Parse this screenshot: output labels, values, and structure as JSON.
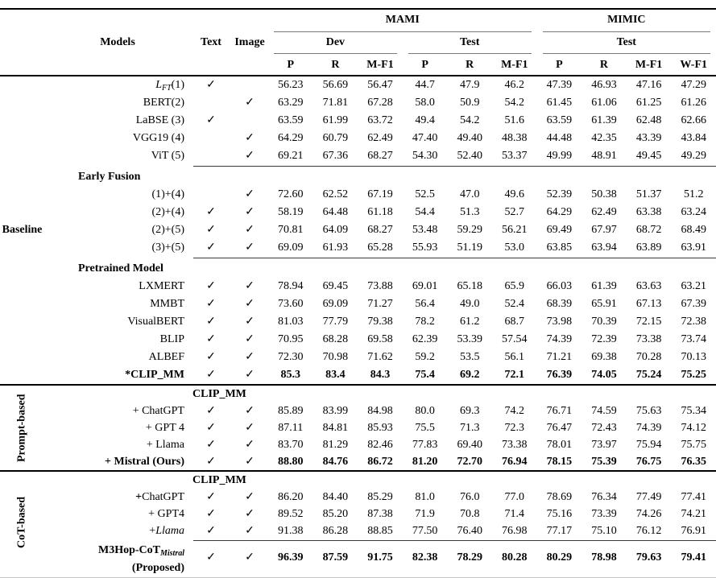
{
  "checkmark": "✓",
  "header": {
    "models": "Models",
    "text": "Text",
    "image": "Image",
    "group_mami": "MAMI",
    "group_mimic": "MIMIC",
    "sub_dev": "Dev",
    "sub_test_mami": "Test",
    "sub_test_mimic": "Test",
    "metrics": [
      "P",
      "R",
      "M-F1",
      "P",
      "R",
      "M-F1",
      "P",
      "R",
      "M-F1",
      "W-F1"
    ]
  },
  "sections": [
    {
      "label": "Baseline",
      "orientation": "horizontal",
      "subsections": [
        {
          "header": null,
          "rows": [
            {
              "label": [
                {
                  "t": "L",
                  "s": "i"
                },
                {
                  "t": "FT",
                  "s": "subi"
                },
                {
                  "t": "(1)",
                  "s": "n"
                }
              ],
              "text": true,
              "image": false,
              "bold": false,
              "values": [
                "56.23",
                "56.69",
                "56.47",
                "44.7",
                "47.9",
                "46.2",
                "47.39",
                "46.93",
                "47.16",
                "47.29"
              ]
            },
            {
              "label": [
                {
                  "t": "BERT(2)",
                  "s": "n"
                }
              ],
              "text": false,
              "image": true,
              "bold": false,
              "values": [
                "63.29",
                "71.81",
                "67.28",
                "58.0",
                "50.9",
                "54.2",
                "61.45",
                "61.06",
                "61.25",
                "61.26"
              ]
            },
            {
              "label": [
                {
                  "t": "LaBSE (3)",
                  "s": "n"
                }
              ],
              "text": true,
              "image": false,
              "bold": false,
              "values": [
                "63.59",
                "61.99",
                "63.72",
                "49.4",
                "54.2",
                "51.6",
                "63.59",
                "61.39",
                "62.48",
                "62.66"
              ]
            },
            {
              "label": [
                {
                  "t": "VGG19 (4)",
                  "s": "n"
                }
              ],
              "text": false,
              "image": true,
              "bold": false,
              "values": [
                "64.29",
                "60.79",
                "62.49",
                "47.40",
                "49.40",
                "48.38",
                "44.48",
                "42.35",
                "43.39",
                "43.84"
              ]
            },
            {
              "label": [
                {
                  "t": "ViT (5)",
                  "s": "n"
                }
              ],
              "text": false,
              "image": true,
              "bold": false,
              "values": [
                "69.21",
                "67.36",
                "68.27",
                "54.30",
                "52.40",
                "53.37",
                "49.99",
                "48.91",
                "49.45",
                "49.29"
              ]
            }
          ]
        },
        {
          "header": "Early Fusion",
          "header_pos": "models",
          "divider_before": true,
          "rows": [
            {
              "label": [
                {
                  "t": "(1)+(4)",
                  "s": "n"
                }
              ],
              "text": false,
              "image": true,
              "bold": false,
              "values": [
                "72.60",
                "62.52",
                "67.19",
                "52.5",
                "47.0",
                "49.6",
                "52.39",
                "50.38",
                "51.37",
                "51.2"
              ]
            },
            {
              "label": [
                {
                  "t": "(2)+(4)",
                  "s": "n"
                }
              ],
              "text": true,
              "image": true,
              "bold": false,
              "values": [
                "58.19",
                "64.48",
                "61.18",
                "54.4",
                "51.3",
                "52.7",
                "64.29",
                "62.49",
                "63.38",
                "63.24"
              ]
            },
            {
              "label": [
                {
                  "t": "(2)+(5)",
                  "s": "n"
                }
              ],
              "text": true,
              "image": true,
              "bold": false,
              "values": [
                "70.81",
                "64.09",
                "68.27",
                "53.48",
                "59.29",
                "56.21",
                "69.49",
                "67.97",
                "68.72",
                "68.49"
              ]
            },
            {
              "label": [
                {
                  "t": "(3)+(5)",
                  "s": "n"
                }
              ],
              "text": true,
              "image": true,
              "bold": false,
              "values": [
                "69.09",
                "61.93",
                "65.28",
                "55.93",
                "51.19",
                "53.0",
                "63.85",
                "63.94",
                "63.89",
                "63.91"
              ]
            }
          ]
        },
        {
          "header": "Pretrained Model",
          "header_pos": "models",
          "divider_before": true,
          "rows": [
            {
              "label": [
                {
                  "t": "LXMERT",
                  "s": "n"
                }
              ],
              "text": true,
              "image": true,
              "bold": false,
              "values": [
                "78.94",
                "69.45",
                "73.88",
                "69.01",
                "65.18",
                "65.9",
                "66.03",
                "61.39",
                "63.63",
                "63.21"
              ]
            },
            {
              "label": [
                {
                  "t": "MMBT",
                  "s": "n"
                }
              ],
              "text": true,
              "image": true,
              "bold": false,
              "values": [
                "73.60",
                "69.09",
                "71.27",
                "56.4",
                "49.0",
                "52.4",
                "68.39",
                "65.91",
                "67.13",
                "67.39"
              ]
            },
            {
              "label": [
                {
                  "t": "VisualBERT",
                  "s": "n"
                }
              ],
              "text": true,
              "image": true,
              "bold": false,
              "values": [
                "81.03",
                "77.79",
                "79.38",
                "78.2",
                "61.2",
                "68.7",
                "73.98",
                "70.39",
                "72.15",
                "72.38"
              ]
            },
            {
              "label": [
                {
                  "t": "BLIP",
                  "s": "n"
                }
              ],
              "text": true,
              "image": true,
              "bold": false,
              "values": [
                "70.95",
                "68.28",
                "69.58",
                "62.39",
                "53.39",
                "57.54",
                "74.39",
                "72.39",
                "73.38",
                "73.74"
              ]
            },
            {
              "label": [
                {
                  "t": "ALBEF",
                  "s": "n"
                }
              ],
              "text": true,
              "image": true,
              "bold": false,
              "values": [
                "72.30",
                "70.98",
                "71.62",
                "59.2",
                "53.5",
                "56.1",
                "71.21",
                "69.38",
                "70.28",
                "70.13"
              ]
            },
            {
              "label": [
                {
                  "t": "*CLIP_MM",
                  "s": "b"
                }
              ],
              "text": true,
              "image": true,
              "bold": true,
              "values": [
                "85.3",
                "83.4",
                "84.3",
                "75.4",
                "69.2",
                "72.1",
                "76.39",
                "74.05",
                "75.24",
                "75.25"
              ]
            }
          ]
        }
      ]
    },
    {
      "label": "Prompt-based",
      "orientation": "vertical",
      "subsections": [
        {
          "header": "CLIP_MM",
          "header_pos": "checkcols",
          "rows": [
            {
              "label": [
                {
                  "t": "+ ChatGPT",
                  "s": "n"
                }
              ],
              "text": true,
              "image": true,
              "bold": false,
              "values": [
                "85.89",
                "83.99",
                "84.98",
                "80.0",
                "69.3",
                "74.2",
                "76.71",
                "74.59",
                "75.63",
                "75.34"
              ]
            },
            {
              "label": [
                {
                  "t": "+ GPT 4",
                  "s": "n"
                }
              ],
              "text": true,
              "image": true,
              "bold": false,
              "values": [
                "87.11",
                "84.81",
                "85.93",
                "75.5",
                "71.3",
                "72.3",
                "76.47",
                "72.43",
                "74.39",
                "74.12"
              ]
            },
            {
              "label": [
                {
                  "t": "+ Llama",
                  "s": "n"
                }
              ],
              "text": true,
              "image": true,
              "bold": false,
              "values": [
                "83.70",
                "81.29",
                "82.46",
                "77.83",
                "69.40",
                "73.38",
                "78.01",
                "73.97",
                "75.94",
                "75.75"
              ]
            },
            {
              "label": [
                {
                  "t": "+ Mistral (Ours)",
                  "s": "b"
                }
              ],
              "text": true,
              "image": true,
              "bold": true,
              "values": [
                "88.80",
                "84.76",
                "86.72",
                "81.20",
                "72.70",
                "76.94",
                "78.15",
                "75.39",
                "76.75",
                "76.35"
              ]
            }
          ]
        }
      ]
    },
    {
      "label": "CoT-based",
      "orientation": "vertical",
      "subsections": [
        {
          "header": "CLIP_MM",
          "header_pos": "checkcols",
          "rows": [
            {
              "label": [
                {
                  "t": "+",
                  "s": "b"
                },
                {
                  "t": "ChatGPT",
                  "s": "n"
                }
              ],
              "text": true,
              "image": true,
              "bold": false,
              "values": [
                "86.20",
                "84.40",
                "85.29",
                "81.0",
                "76.0",
                "77.0",
                "78.69",
                "76.34",
                "77.49",
                "77.41"
              ]
            },
            {
              "label": [
                {
                  "t": "+ GPT4",
                  "s": "n"
                }
              ],
              "text": true,
              "image": true,
              "bold": false,
              "values": [
                "89.52",
                "85.20",
                "87.38",
                "71.9",
                "70.8",
                "71.4",
                "75.16",
                "73.39",
                "74.26",
                "74.21"
              ]
            },
            {
              "label": [
                {
                  "t": "+",
                  "s": "n"
                },
                {
                  "t": "Llama",
                  "s": "i"
                }
              ],
              "text": true,
              "image": true,
              "bold": false,
              "values": [
                "91.38",
                "86.28",
                "88.85",
                "77.50",
                "76.40",
                "76.98",
                "77.17",
                "75.10",
                "76.12",
                "76.91"
              ]
            }
          ]
        },
        {
          "header": null,
          "divider_before": true,
          "rows": [
            {
              "label": [
                {
                  "t": "M3Hop-CoT",
                  "s": "b"
                },
                {
                  "t": "Mistral",
                  "s": "subi"
                }
              ],
              "label2": [
                {
                  "t": "(Proposed)",
                  "s": "b"
                }
              ],
              "tall": true,
              "text": true,
              "image": true,
              "bold": true,
              "values": [
                "96.39",
                "87.59",
                "91.75",
                "82.38",
                "78.29",
                "80.28",
                "80.29",
                "78.98",
                "79.63",
                "79.41"
              ]
            }
          ]
        }
      ]
    }
  ]
}
